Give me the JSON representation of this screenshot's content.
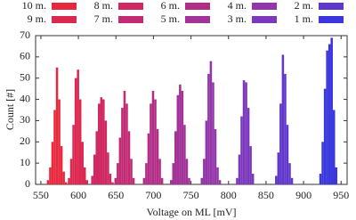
{
  "chart_data": {
    "type": "histogram",
    "xlabel": "Voltage on ML [mV]",
    "ylabel": "Count [#]",
    "xlim": [
      543,
      958
    ],
    "xticks": [
      550,
      600,
      650,
      700,
      750,
      800,
      850,
      900,
      950
    ],
    "ylim": [
      0,
      70
    ],
    "yticks": [
      0,
      10,
      20,
      30,
      40,
      50,
      60,
      70
    ],
    "series": [
      {
        "name": "10 m.",
        "color": "#e8283c",
        "bins": [
          558,
          561,
          564,
          567,
          570,
          573,
          576,
          579,
          582,
          585
        ],
        "values": [
          2,
          8,
          20,
          35,
          55,
          40,
          18,
          6,
          1
        ]
      },
      {
        "name": "9 m.",
        "color": "#dc2850",
        "bins": [
          586,
          589,
          592,
          595,
          598,
          601,
          604,
          607,
          610,
          613
        ],
        "values": [
          3,
          12,
          28,
          50,
          54,
          40,
          20,
          8,
          2
        ]
      },
      {
        "name": "8 m.",
        "color": "#d02862",
        "bins": [
          617,
          620,
          623,
          626,
          629,
          632,
          635,
          638,
          641,
          644,
          647
        ],
        "values": [
          4,
          14,
          25,
          38,
          41,
          40,
          30,
          15,
          5,
          1
        ]
      },
      {
        "name": "7 m.",
        "color": "#c22a74",
        "bins": [
          648,
          651,
          654,
          657,
          660,
          663,
          666,
          669,
          672,
          675
        ],
        "values": [
          3,
          10,
          22,
          36,
          44,
          38,
          25,
          12,
          3
        ]
      },
      {
        "name": "6 m.",
        "color": "#b22e86",
        "bins": [
          686,
          689,
          692,
          695,
          698,
          701,
          704,
          707,
          710,
          713
        ],
        "values": [
          3,
          10,
          24,
          38,
          44,
          40,
          26,
          12,
          3
        ]
      },
      {
        "name": "5 m.",
        "color": "#a23298",
        "bins": [
          722,
          725,
          728,
          731,
          734,
          737,
          740,
          743,
          746,
          749
        ],
        "values": [
          2,
          10,
          25,
          42,
          47,
          44,
          28,
          12,
          3
        ]
      },
      {
        "name": "4 m.",
        "color": "#9236aa",
        "bins": [
          763,
          766,
          769,
          772,
          775,
          778,
          781,
          784,
          787,
          790
        ],
        "values": [
          3,
          12,
          30,
          52,
          58,
          48,
          26,
          8,
          2
        ]
      },
      {
        "name": "3 m.",
        "color": "#7c38bc",
        "bins": [
          810,
          813,
          816,
          819,
          822,
          825,
          828,
          831,
          834
        ],
        "values": [
          3,
          14,
          32,
          49,
          48,
          36,
          18,
          5
        ]
      },
      {
        "name": "2 m.",
        "color": "#6238cc",
        "bins": [
          862,
          865,
          868,
          871,
          874,
          877,
          880,
          883,
          886
        ],
        "values": [
          4,
          15,
          38,
          61,
          52,
          28,
          10,
          3
        ]
      },
      {
        "name": "1 m.",
        "color": "#3a38dc",
        "bins": [
          921,
          924,
          927,
          930,
          933,
          936,
          939,
          942,
          945
        ],
        "values": [
          5,
          20,
          45,
          63,
          66,
          69,
          35,
          8
        ]
      }
    ]
  }
}
